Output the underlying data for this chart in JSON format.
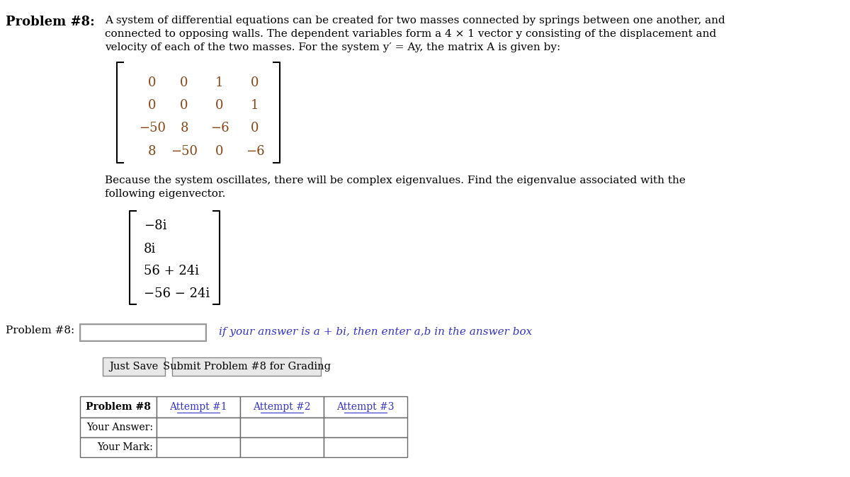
{
  "bg_color": "#ffffff",
  "title_bold": "Problem #8:",
  "matrix_A": [
    [
      "0",
      "0",
      "1",
      "0"
    ],
    [
      "0",
      "0",
      "0",
      "1"
    ],
    [
      "−50",
      "8",
      "−6",
      "0"
    ],
    [
      "8",
      "−50",
      "0",
      "−6"
    ]
  ],
  "matrix_color": "#8B4513",
  "eigenvector": [
    "−8i",
    "8i",
    "56 + 24i",
    "−56 − 24i"
  ],
  "problem_label": "Problem #8:",
  "input_hint": "if your answer is a + bi, then enter a,b in the answer box",
  "btn1": "Just Save",
  "btn2": "Submit Problem #8 for Grading",
  "table_header_col0": "Problem #8",
  "table_attempt_cols": [
    "Attempt #1",
    "Attempt #2",
    "Attempt #3"
  ],
  "table_row1_col0": "Your Answer:",
  "table_row2_col0": "Your Mark:"
}
